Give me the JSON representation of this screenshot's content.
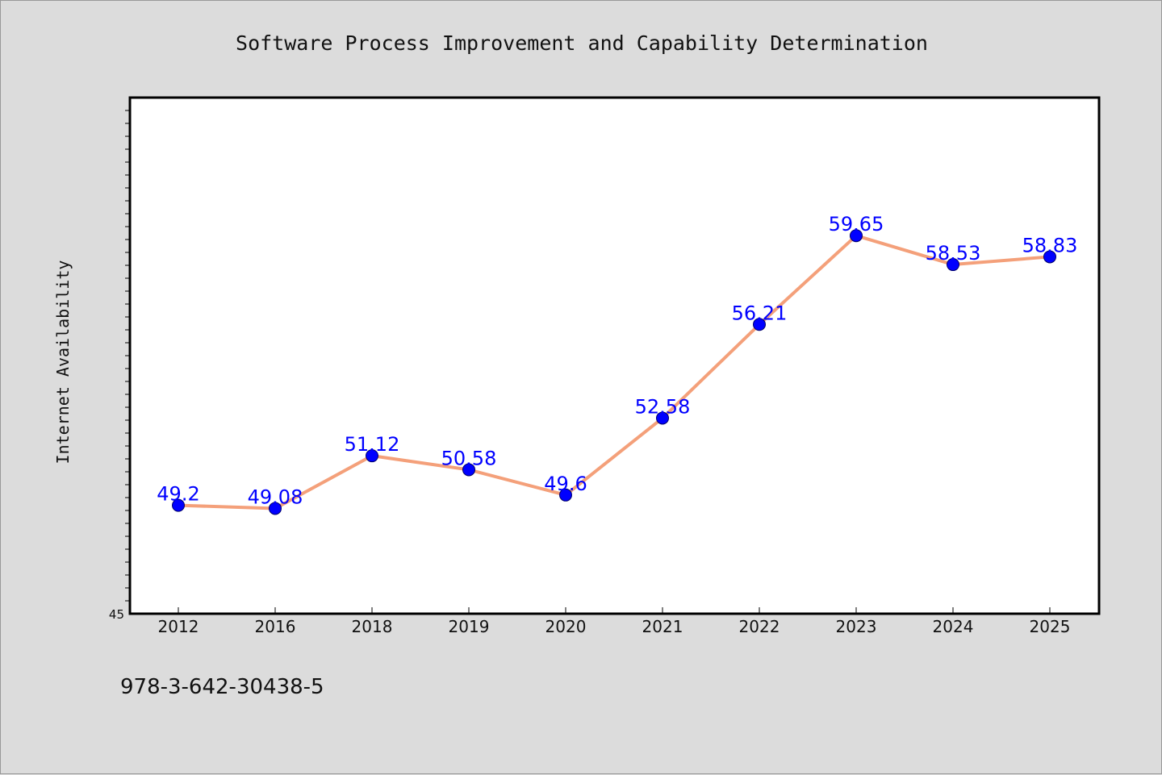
{
  "chart_data": {
    "type": "line",
    "title": "Software Process Improvement and Capability Determination",
    "ylabel": "Internet Availability",
    "xlabel": "",
    "categories": [
      "2012",
      "2016",
      "2018",
      "2019",
      "2020",
      "2021",
      "2022",
      "2023",
      "2024",
      "2025"
    ],
    "values": [
      49.2,
      49.08,
      51.12,
      50.58,
      49.6,
      52.58,
      56.21,
      59.65,
      58.53,
      58.83
    ],
    "labels": [
      "49.2",
      "49.08",
      "51.12",
      "50.58",
      "49.6",
      "52.58",
      "56.21",
      "59.65",
      "58.53",
      "58.83"
    ],
    "ylim": [
      45,
      65
    ],
    "ytick_label": "45",
    "grid": false,
    "line_color": "#f4a07a",
    "marker_color": "#0000ff",
    "label_color": "#0000ff"
  },
  "footer": {
    "isbn": "978-3-642-30438-5"
  }
}
